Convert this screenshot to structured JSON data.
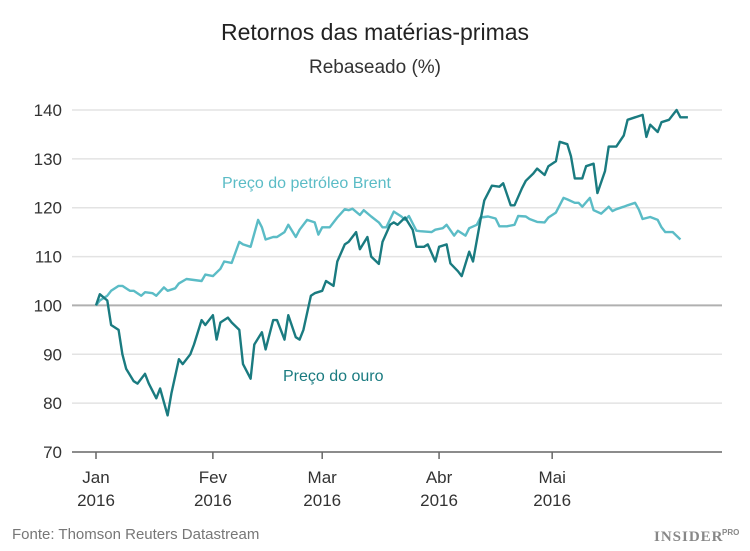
{
  "chart_data": {
    "type": "line",
    "title": "Retornos das matérias-primas",
    "subtitle": "Rebaseado (%)",
    "xlabel": "",
    "ylabel": "",
    "ylim": [
      70,
      140
    ],
    "yticks": [
      70,
      80,
      90,
      100,
      110,
      120,
      130,
      140
    ],
    "xlim": [
      "2016-01-01",
      "2016-06-15"
    ],
    "xticks": [
      {
        "date": "2016-01-01",
        "month": "Jan",
        "year": "2016"
      },
      {
        "date": "2016-02-01",
        "month": "Fev",
        "year": "2016"
      },
      {
        "date": "2016-03-01",
        "month": "Mar",
        "year": "2016"
      },
      {
        "date": "2016-04-01",
        "month": "Abr",
        "year": "2016"
      },
      {
        "date": "2016-05-01",
        "month": "Mai",
        "year": "2016"
      }
    ],
    "grid": "horizontal",
    "baseline": 100,
    "series": [
      {
        "name": "Preço do petróleo Brent",
        "color": "#5bbcc6",
        "points": [
          [
            "2016-01-01",
            100
          ],
          [
            "2016-01-02",
            101
          ],
          [
            "2016-01-04",
            102
          ],
          [
            "2016-01-05",
            103
          ],
          [
            "2016-01-07",
            104
          ],
          [
            "2016-01-08",
            104
          ],
          [
            "2016-01-10",
            103
          ],
          [
            "2016-01-11",
            103
          ],
          [
            "2016-01-13",
            102
          ],
          [
            "2016-01-14",
            102.7
          ],
          [
            "2016-01-16",
            102.5
          ],
          [
            "2016-01-17",
            102
          ],
          [
            "2016-01-19",
            103.7
          ],
          [
            "2016-01-20",
            103
          ],
          [
            "2016-01-22",
            103.5
          ],
          [
            "2016-01-23",
            104.5
          ],
          [
            "2016-01-25",
            105.4
          ],
          [
            "2016-01-27",
            105.2
          ],
          [
            "2016-01-29",
            105
          ],
          [
            "2016-01-30",
            106.3
          ],
          [
            "2016-02-01",
            106
          ],
          [
            "2016-02-03",
            107.5
          ],
          [
            "2016-02-04",
            109
          ],
          [
            "2016-02-06",
            108.7
          ],
          [
            "2016-02-08",
            113
          ],
          [
            "2016-02-09",
            112.5
          ],
          [
            "2016-02-11",
            112
          ],
          [
            "2016-02-13",
            117.5
          ],
          [
            "2016-02-14",
            116
          ],
          [
            "2016-02-15",
            113.5
          ],
          [
            "2016-02-17",
            114
          ],
          [
            "2016-02-18",
            114
          ],
          [
            "2016-02-20",
            115
          ],
          [
            "2016-02-21",
            116.5
          ],
          [
            "2016-02-23",
            114
          ],
          [
            "2016-02-24",
            115.5
          ],
          [
            "2016-02-26",
            117.5
          ],
          [
            "2016-02-28",
            117
          ],
          [
            "2016-02-29",
            114.5
          ],
          [
            "2016-03-01",
            116
          ],
          [
            "2016-03-03",
            116
          ],
          [
            "2016-03-05",
            118
          ],
          [
            "2016-03-07",
            119.7
          ],
          [
            "2016-03-08",
            119.5
          ],
          [
            "2016-03-09",
            119.8
          ],
          [
            "2016-03-11",
            118.5
          ],
          [
            "2016-03-12",
            119.5
          ],
          [
            "2016-03-14",
            118.2
          ],
          [
            "2016-03-16",
            117
          ],
          [
            "2016-03-17",
            116
          ],
          [
            "2016-03-18",
            116
          ],
          [
            "2016-03-20",
            119.2
          ],
          [
            "2016-03-22",
            118.2
          ],
          [
            "2016-03-23",
            117.5
          ],
          [
            "2016-03-24",
            118.3
          ],
          [
            "2016-03-26",
            115.3
          ],
          [
            "2016-03-27",
            115.2
          ],
          [
            "2016-03-30",
            115
          ],
          [
            "2016-03-31",
            115.5
          ],
          [
            "2016-04-02",
            115.8
          ],
          [
            "2016-04-03",
            116.5
          ],
          [
            "2016-04-05",
            114.3
          ],
          [
            "2016-04-06",
            115.3
          ],
          [
            "2016-04-08",
            114.3
          ],
          [
            "2016-04-09",
            115.8
          ],
          [
            "2016-04-11",
            116.5
          ],
          [
            "2016-04-12",
            118
          ],
          [
            "2016-04-14",
            118.2
          ],
          [
            "2016-04-16",
            117.8
          ],
          [
            "2016-04-17",
            116.2
          ],
          [
            "2016-04-19",
            116.2
          ],
          [
            "2016-04-21",
            116.5
          ],
          [
            "2016-04-22",
            118.3
          ],
          [
            "2016-04-24",
            118.2
          ],
          [
            "2016-04-25",
            117.7
          ],
          [
            "2016-04-27",
            117.1
          ],
          [
            "2016-04-29",
            117
          ],
          [
            "2016-04-30",
            118
          ],
          [
            "2016-05-02",
            119
          ],
          [
            "2016-05-04",
            122
          ],
          [
            "2016-05-05",
            121.7
          ],
          [
            "2016-05-07",
            121
          ],
          [
            "2016-05-08",
            121
          ],
          [
            "2016-05-09",
            120.2
          ],
          [
            "2016-05-11",
            122
          ],
          [
            "2016-05-12",
            119.5
          ],
          [
            "2016-05-14",
            118.8
          ],
          [
            "2016-05-16",
            120.2
          ],
          [
            "2016-05-17",
            119.3
          ],
          [
            "2016-05-18",
            119.7
          ],
          [
            "2016-05-20",
            120.2
          ],
          [
            "2016-05-21",
            120.5
          ],
          [
            "2016-05-23",
            121
          ],
          [
            "2016-05-24",
            119.6
          ],
          [
            "2016-05-25",
            117.7
          ],
          [
            "2016-05-27",
            118.1
          ],
          [
            "2016-05-29",
            117.5
          ],
          [
            "2016-05-30",
            116
          ],
          [
            "2016-05-31",
            115
          ],
          [
            "2016-06-02",
            115
          ],
          [
            "2016-06-04",
            113.5
          ]
        ]
      },
      {
        "name": "Preço do ouro",
        "color": "#1a7b80",
        "points": [
          [
            "2016-01-01",
            100
          ],
          [
            "2016-01-02",
            102.3
          ],
          [
            "2016-01-04",
            101
          ],
          [
            "2016-01-05",
            96
          ],
          [
            "2016-01-07",
            95
          ],
          [
            "2016-01-08",
            90
          ],
          [
            "2016-01-09",
            87
          ],
          [
            "2016-01-11",
            84.5
          ],
          [
            "2016-01-12",
            84
          ],
          [
            "2016-01-14",
            86
          ],
          [
            "2016-01-15",
            84
          ],
          [
            "2016-01-17",
            81
          ],
          [
            "2016-01-18",
            83
          ],
          [
            "2016-01-20",
            77.5
          ],
          [
            "2016-01-21",
            82
          ],
          [
            "2016-01-23",
            89
          ],
          [
            "2016-01-24",
            88
          ],
          [
            "2016-01-26",
            90
          ],
          [
            "2016-01-27",
            92
          ],
          [
            "2016-01-29",
            97
          ],
          [
            "2016-01-30",
            96
          ],
          [
            "2016-02-01",
            98
          ],
          [
            "2016-02-02",
            93
          ],
          [
            "2016-02-03",
            96.5
          ],
          [
            "2016-02-05",
            97.5
          ],
          [
            "2016-02-06",
            96.5
          ],
          [
            "2016-02-08",
            95
          ],
          [
            "2016-02-09",
            88
          ],
          [
            "2016-02-11",
            85
          ],
          [
            "2016-02-12",
            92
          ],
          [
            "2016-02-14",
            94.5
          ],
          [
            "2016-02-15",
            91
          ],
          [
            "2016-02-17",
            97
          ],
          [
            "2016-02-18",
            97
          ],
          [
            "2016-02-20",
            93
          ],
          [
            "2016-02-21",
            98
          ],
          [
            "2016-02-23",
            93.5
          ],
          [
            "2016-02-24",
            93
          ],
          [
            "2016-02-25",
            95
          ],
          [
            "2016-02-27",
            102
          ],
          [
            "2016-02-28",
            102.5
          ],
          [
            "2016-03-01",
            103
          ],
          [
            "2016-03-02",
            105
          ],
          [
            "2016-03-04",
            104
          ],
          [
            "2016-03-05",
            109
          ],
          [
            "2016-03-07",
            112.5
          ],
          [
            "2016-03-08",
            113
          ],
          [
            "2016-03-10",
            115
          ],
          [
            "2016-03-11",
            111.5
          ],
          [
            "2016-03-13",
            114
          ],
          [
            "2016-03-14",
            110
          ],
          [
            "2016-03-16",
            108.5
          ],
          [
            "2016-03-17",
            113
          ],
          [
            "2016-03-19",
            116.5
          ],
          [
            "2016-03-20",
            117
          ],
          [
            "2016-03-21",
            116.5
          ],
          [
            "2016-03-23",
            118
          ],
          [
            "2016-03-25",
            115.5
          ],
          [
            "2016-03-26",
            112
          ],
          [
            "2016-03-28",
            112
          ],
          [
            "2016-03-29",
            112.5
          ],
          [
            "2016-03-31",
            109
          ],
          [
            "2016-04-01",
            112
          ],
          [
            "2016-04-03",
            112.5
          ],
          [
            "2016-04-04",
            108.6
          ],
          [
            "2016-04-06",
            107
          ],
          [
            "2016-04-07",
            106
          ],
          [
            "2016-04-09",
            111
          ],
          [
            "2016-04-10",
            109
          ],
          [
            "2016-04-12",
            117.5
          ],
          [
            "2016-04-13",
            121.5
          ],
          [
            "2016-04-15",
            124.5
          ],
          [
            "2016-04-17",
            124.3
          ],
          [
            "2016-04-18",
            125
          ],
          [
            "2016-04-20",
            120.5
          ],
          [
            "2016-04-21",
            120.5
          ],
          [
            "2016-04-23",
            124
          ],
          [
            "2016-04-24",
            125.5
          ],
          [
            "2016-04-26",
            127
          ],
          [
            "2016-04-27",
            128
          ],
          [
            "2016-04-29",
            126.7
          ],
          [
            "2016-04-30",
            128.5
          ],
          [
            "2016-05-02",
            129.5
          ],
          [
            "2016-05-03",
            133.5
          ],
          [
            "2016-05-05",
            133
          ],
          [
            "2016-05-06",
            130.5
          ],
          [
            "2016-05-07",
            126
          ],
          [
            "2016-05-09",
            126
          ],
          [
            "2016-05-10",
            128.5
          ],
          [
            "2016-05-12",
            129
          ],
          [
            "2016-05-13",
            123
          ],
          [
            "2016-05-15",
            127.5
          ],
          [
            "2016-05-16",
            132.5
          ],
          [
            "2016-05-18",
            132.5
          ],
          [
            "2016-05-20",
            134.8
          ],
          [
            "2016-05-21",
            138
          ],
          [
            "2016-05-23",
            138.5
          ],
          [
            "2016-05-25",
            139
          ],
          [
            "2016-05-26",
            134.5
          ],
          [
            "2016-05-27",
            137
          ],
          [
            "2016-05-29",
            135.5
          ],
          [
            "2016-05-30",
            137.5
          ],
          [
            "2016-06-01",
            138
          ],
          [
            "2016-06-03",
            140
          ],
          [
            "2016-06-04",
            138.5
          ],
          [
            "2016-06-06",
            138.5
          ]
        ]
      }
    ]
  },
  "source": "Fonte: Thomson Reuters Datastream",
  "logo": "INSIDER PRO",
  "colors": {
    "grid": "#e3e3e3",
    "baseline": "#b0b0b0",
    "axis": "#666666"
  }
}
